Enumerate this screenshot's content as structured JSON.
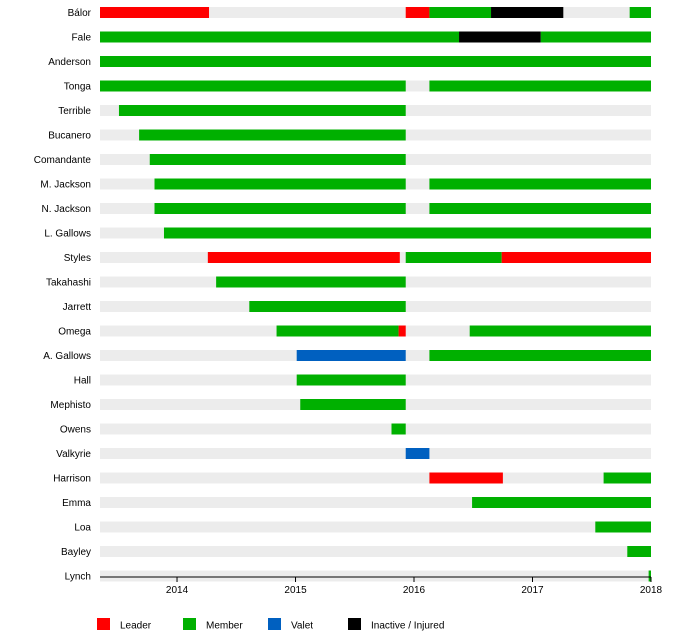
{
  "chart_data": {
    "type": "timeline",
    "x_range": [
      2013.35,
      2018.0
    ],
    "x_ticks": [
      "2014",
      "2015",
      "2016",
      "2017",
      "2018"
    ],
    "legend_placement": "bottom",
    "categories": [
      {
        "key": "leader",
        "label": "Leader",
        "color": "#ff0000"
      },
      {
        "key": "member",
        "label": "Member",
        "color": "#00b000"
      },
      {
        "key": "valet",
        "label": "Valet",
        "color": "#0060c0"
      },
      {
        "key": "inactive",
        "label": "Inactive / Injured",
        "color": "#000000"
      }
    ],
    "rows": [
      {
        "name": "Bálor",
        "segments": [
          [
            2013.35,
            2014.27,
            "leader"
          ],
          [
            2015.93,
            2016.13,
            "leader"
          ],
          [
            2016.13,
            2016.65,
            "member"
          ],
          [
            2016.65,
            2017.26,
            "inactive"
          ],
          [
            2017.82,
            2018.0,
            "member"
          ]
        ]
      },
      {
        "name": "Fale",
        "segments": [
          [
            2013.35,
            2016.38,
            "member"
          ],
          [
            2016.38,
            2017.07,
            "inactive"
          ],
          [
            2017.07,
            2018.0,
            "member"
          ]
        ]
      },
      {
        "name": "Anderson",
        "segments": [
          [
            2013.35,
            2018.0,
            "member"
          ]
        ]
      },
      {
        "name": "Tonga",
        "segments": [
          [
            2013.35,
            2015.93,
            "member"
          ],
          [
            2016.13,
            2018.0,
            "member"
          ]
        ]
      },
      {
        "name": "Terrible",
        "segments": [
          [
            2013.51,
            2015.93,
            "member"
          ]
        ]
      },
      {
        "name": "Bucanero",
        "segments": [
          [
            2013.68,
            2015.93,
            "member"
          ]
        ]
      },
      {
        "name": "Comandante",
        "segments": [
          [
            2013.77,
            2015.93,
            "member"
          ]
        ]
      },
      {
        "name": "M. Jackson",
        "segments": [
          [
            2013.81,
            2015.93,
            "member"
          ],
          [
            2016.13,
            2018.0,
            "member"
          ]
        ]
      },
      {
        "name": "N. Jackson",
        "segments": [
          [
            2013.81,
            2015.93,
            "member"
          ],
          [
            2016.13,
            2018.0,
            "member"
          ]
        ]
      },
      {
        "name": "L. Gallows",
        "segments": [
          [
            2013.89,
            2018.0,
            "member"
          ]
        ]
      },
      {
        "name": "Styles",
        "segments": [
          [
            2014.26,
            2015.88,
            "leader"
          ],
          [
            2015.93,
            2016.74,
            "member"
          ],
          [
            2016.74,
            2018.0,
            "leader"
          ]
        ]
      },
      {
        "name": "Takahashi",
        "segments": [
          [
            2014.33,
            2015.93,
            "member"
          ]
        ]
      },
      {
        "name": "Jarrett",
        "segments": [
          [
            2014.61,
            2015.93,
            "member"
          ]
        ]
      },
      {
        "name": "Omega",
        "segments": [
          [
            2014.84,
            2015.87,
            "member"
          ],
          [
            2015.87,
            2015.93,
            "leader"
          ],
          [
            2016.47,
            2018.0,
            "member"
          ]
        ]
      },
      {
        "name": "A. Gallows",
        "segments": [
          [
            2015.01,
            2015.93,
            "valet"
          ],
          [
            2016.13,
            2018.0,
            "member"
          ]
        ]
      },
      {
        "name": "Hall",
        "segments": [
          [
            2015.01,
            2015.93,
            "member"
          ]
        ]
      },
      {
        "name": "Mephisto",
        "segments": [
          [
            2015.04,
            2015.93,
            "member"
          ]
        ]
      },
      {
        "name": "Owens",
        "segments": [
          [
            2015.81,
            2015.93,
            "member"
          ]
        ]
      },
      {
        "name": "Valkyrie",
        "segments": [
          [
            2015.93,
            2016.13,
            "valet"
          ]
        ]
      },
      {
        "name": "Harrison",
        "segments": [
          [
            2016.13,
            2016.75,
            "leader"
          ],
          [
            2017.6,
            2018.0,
            "member"
          ]
        ]
      },
      {
        "name": "Emma",
        "segments": [
          [
            2016.49,
            2018.0,
            "member"
          ]
        ]
      },
      {
        "name": "Loa",
        "segments": [
          [
            2017.53,
            2018.0,
            "member"
          ]
        ]
      },
      {
        "name": "Bayley",
        "segments": [
          [
            2017.8,
            2018.0,
            "member"
          ]
        ]
      },
      {
        "name": "Lynch",
        "segments": [
          [
            2017.98,
            2018.0,
            "member"
          ]
        ]
      }
    ]
  }
}
